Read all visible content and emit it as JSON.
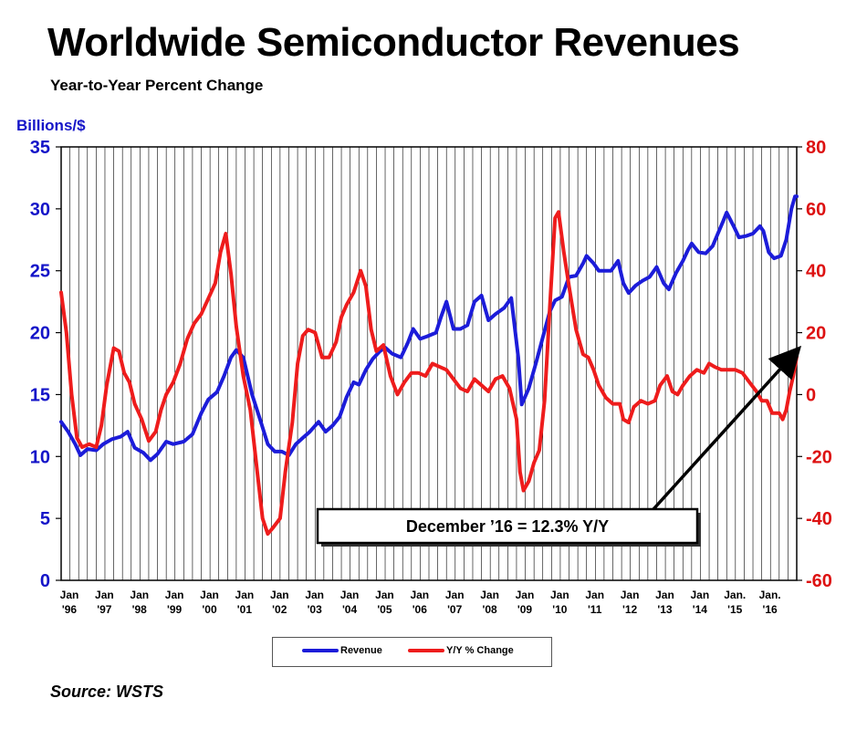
{
  "title": "Worldwide Semiconductor Revenues",
  "subtitle": "Year-to-Year Percent Change",
  "source": "Source: WSTS",
  "colors": {
    "revenue": "#1c1cd9",
    "yoy": "#ee1c1c",
    "left_axis": "#1414c8",
    "right_axis": "#dd1111"
  },
  "chart_data": {
    "type": "line",
    "ylabel_left": "Billions/$",
    "ylim_left": [
      0,
      35
    ],
    "yticks_left": [
      "0",
      "5",
      "10",
      "15",
      "20",
      "25",
      "30",
      "35"
    ],
    "ylim_right": [
      -60,
      80
    ],
    "yticks_right": [
      "-60",
      "-40",
      "-20",
      "0",
      "20",
      "40",
      "60",
      "80"
    ],
    "xlim": [
      1996.0,
      2017.0
    ],
    "x_tick_labels": [
      {
        "x": 1996,
        "line1": "Jan",
        "line2": "'96"
      },
      {
        "x": 1997,
        "line1": "Jan",
        "line2": "'97"
      },
      {
        "x": 1998,
        "line1": "Jan",
        "line2": "'98"
      },
      {
        "x": 1999,
        "line1": "Jan",
        "line2": "'99"
      },
      {
        "x": 2000,
        "line1": "Jan",
        "line2": "'00"
      },
      {
        "x": 2001,
        "line1": "Jan",
        "line2": "'01"
      },
      {
        "x": 2002,
        "line1": "Jan",
        "line2": "'02"
      },
      {
        "x": 2003,
        "line1": "Jan",
        "line2": "'03"
      },
      {
        "x": 2004,
        "line1": "Jan",
        "line2": "'04"
      },
      {
        "x": 2005,
        "line1": "Jan",
        "line2": "'05"
      },
      {
        "x": 2006,
        "line1": "Jan",
        "line2": "'06"
      },
      {
        "x": 2007,
        "line1": "Jan",
        "line2": "'07"
      },
      {
        "x": 2008,
        "line1": "Jan",
        "line2": "'08"
      },
      {
        "x": 2009,
        "line1": "Jan",
        "line2": "'09"
      },
      {
        "x": 2010,
        "line1": "Jan",
        "line2": "'10"
      },
      {
        "x": 2011,
        "line1": "Jan",
        "line2": "'11"
      },
      {
        "x": 2012,
        "line1": "Jan",
        "line2": "'12"
      },
      {
        "x": 2013,
        "line1": "Jan",
        "line2": "'13"
      },
      {
        "x": 2014,
        "line1": "Jan",
        "line2": "'14"
      },
      {
        "x": 2015,
        "line1": "Jan.",
        "line2": "'15"
      },
      {
        "x": 2016,
        "line1": "Jan.",
        "line2": "'16"
      }
    ],
    "grid": "vertical",
    "series": [
      {
        "name": "Revenue",
        "axis": "left",
        "points": [
          [
            1996.0,
            12.8
          ],
          [
            1996.2,
            12.0
          ],
          [
            1996.4,
            11.0
          ],
          [
            1996.55,
            10.1
          ],
          [
            1996.75,
            10.6
          ],
          [
            1997.0,
            10.5
          ],
          [
            1997.2,
            11.0
          ],
          [
            1997.45,
            11.4
          ],
          [
            1997.7,
            11.6
          ],
          [
            1997.9,
            12.0
          ],
          [
            1998.1,
            10.7
          ],
          [
            1998.35,
            10.3
          ],
          [
            1998.55,
            9.7
          ],
          [
            1998.75,
            10.2
          ],
          [
            1999.0,
            11.2
          ],
          [
            1999.2,
            11.0
          ],
          [
            1999.5,
            11.2
          ],
          [
            1999.75,
            11.8
          ],
          [
            2000.0,
            13.5
          ],
          [
            2000.2,
            14.6
          ],
          [
            2000.45,
            15.2
          ],
          [
            2000.65,
            16.5
          ],
          [
            2000.85,
            18.0
          ],
          [
            2001.0,
            18.6
          ],
          [
            2001.2,
            18.0
          ],
          [
            2001.45,
            15.0
          ],
          [
            2001.7,
            12.8
          ],
          [
            2001.9,
            11.0
          ],
          [
            2002.1,
            10.4
          ],
          [
            2002.3,
            10.4
          ],
          [
            2002.5,
            10.1
          ],
          [
            2002.7,
            11.0
          ],
          [
            2002.9,
            11.5
          ],
          [
            2003.1,
            12.0
          ],
          [
            2003.35,
            12.8
          ],
          [
            2003.55,
            12.0
          ],
          [
            2003.75,
            12.5
          ],
          [
            2003.95,
            13.2
          ],
          [
            2004.15,
            14.8
          ],
          [
            2004.35,
            16.0
          ],
          [
            2004.5,
            15.8
          ],
          [
            2004.7,
            17.0
          ],
          [
            2004.9,
            17.9
          ],
          [
            2005.1,
            18.5
          ],
          [
            2005.25,
            18.8
          ],
          [
            2005.45,
            18.3
          ],
          [
            2005.7,
            18.0
          ],
          [
            2005.9,
            19.2
          ],
          [
            2006.05,
            20.3
          ],
          [
            2006.25,
            19.5
          ],
          [
            2006.45,
            19.7
          ],
          [
            2006.7,
            20.0
          ],
          [
            2006.85,
            21.3
          ],
          [
            2007.0,
            22.5
          ],
          [
            2007.2,
            20.3
          ],
          [
            2007.4,
            20.3
          ],
          [
            2007.6,
            20.6
          ],
          [
            2007.8,
            22.5
          ],
          [
            2008.0,
            23.0
          ],
          [
            2008.2,
            21.0
          ],
          [
            2008.4,
            21.5
          ],
          [
            2008.65,
            22.0
          ],
          [
            2008.85,
            22.8
          ],
          [
            2009.05,
            18.0
          ],
          [
            2009.15,
            14.2
          ],
          [
            2009.35,
            15.5
          ],
          [
            2009.55,
            17.5
          ],
          [
            2009.75,
            19.6
          ],
          [
            2009.95,
            21.7
          ],
          [
            2010.1,
            22.6
          ],
          [
            2010.3,
            22.9
          ],
          [
            2010.5,
            24.5
          ],
          [
            2010.7,
            24.6
          ],
          [
            2010.9,
            25.6
          ],
          [
            2011.0,
            26.2
          ],
          [
            2011.2,
            25.6
          ],
          [
            2011.35,
            25.0
          ],
          [
            2011.55,
            25.0
          ],
          [
            2011.7,
            25.0
          ],
          [
            2011.9,
            25.8
          ],
          [
            2012.05,
            24.0
          ],
          [
            2012.2,
            23.2
          ],
          [
            2012.4,
            23.8
          ],
          [
            2012.6,
            24.2
          ],
          [
            2012.8,
            24.5
          ],
          [
            2013.0,
            25.3
          ],
          [
            2013.2,
            24.0
          ],
          [
            2013.35,
            23.5
          ],
          [
            2013.55,
            24.8
          ],
          [
            2013.75,
            25.8
          ],
          [
            2013.9,
            26.7
          ],
          [
            2014.0,
            27.2
          ],
          [
            2014.2,
            26.5
          ],
          [
            2014.4,
            26.4
          ],
          [
            2014.6,
            27.0
          ],
          [
            2014.75,
            28.0
          ],
          [
            2014.9,
            29.0
          ],
          [
            2015.0,
            29.7
          ],
          [
            2015.2,
            28.6
          ],
          [
            2015.35,
            27.7
          ],
          [
            2015.55,
            27.8
          ],
          [
            2015.75,
            28.0
          ],
          [
            2015.95,
            28.6
          ],
          [
            2016.05,
            28.2
          ],
          [
            2016.2,
            26.5
          ],
          [
            2016.35,
            26.0
          ],
          [
            2016.55,
            26.2
          ],
          [
            2016.7,
            27.5
          ],
          [
            2016.85,
            30.0
          ],
          [
            2016.95,
            31.0
          ],
          [
            2017.0,
            31.0
          ]
        ]
      },
      {
        "name": "Y/Y % Change",
        "axis": "right",
        "points": [
          [
            1996.0,
            33
          ],
          [
            1996.15,
            20
          ],
          [
            1996.3,
            0
          ],
          [
            1996.45,
            -14
          ],
          [
            1996.6,
            -17
          ],
          [
            1996.8,
            -16
          ],
          [
            1997.0,
            -17
          ],
          [
            1997.15,
            -10
          ],
          [
            1997.3,
            3
          ],
          [
            1997.5,
            15
          ],
          [
            1997.65,
            14
          ],
          [
            1997.8,
            7
          ],
          [
            1997.95,
            4
          ],
          [
            1998.1,
            -3
          ],
          [
            1998.3,
            -8
          ],
          [
            1998.5,
            -15
          ],
          [
            1998.7,
            -12
          ],
          [
            1998.85,
            -5
          ],
          [
            1999.0,
            0
          ],
          [
            1999.2,
            4
          ],
          [
            1999.4,
            10
          ],
          [
            1999.6,
            18
          ],
          [
            1999.8,
            23
          ],
          [
            2000.0,
            26
          ],
          [
            2000.2,
            31
          ],
          [
            2000.4,
            36
          ],
          [
            2000.55,
            46
          ],
          [
            2000.7,
            52
          ],
          [
            2000.85,
            39
          ],
          [
            2001.0,
            22
          ],
          [
            2001.2,
            6
          ],
          [
            2001.4,
            -5
          ],
          [
            2001.6,
            -25
          ],
          [
            2001.75,
            -40
          ],
          [
            2001.9,
            -45
          ],
          [
            2002.05,
            -43
          ],
          [
            2002.25,
            -40
          ],
          [
            2002.4,
            -25
          ],
          [
            2002.6,
            -9
          ],
          [
            2002.75,
            10
          ],
          [
            2002.9,
            19
          ],
          [
            2003.05,
            21
          ],
          [
            2003.25,
            20
          ],
          [
            2003.45,
            12
          ],
          [
            2003.65,
            12
          ],
          [
            2003.85,
            17
          ],
          [
            2004.0,
            25
          ],
          [
            2004.15,
            29
          ],
          [
            2004.35,
            33
          ],
          [
            2004.55,
            40
          ],
          [
            2004.7,
            35
          ],
          [
            2004.85,
            21
          ],
          [
            2005.0,
            14
          ],
          [
            2005.2,
            16
          ],
          [
            2005.4,
            6
          ],
          [
            2005.6,
            0
          ],
          [
            2005.8,
            4
          ],
          [
            2006.0,
            7
          ],
          [
            2006.2,
            7
          ],
          [
            2006.4,
            6
          ],
          [
            2006.6,
            10
          ],
          [
            2006.8,
            9
          ],
          [
            2007.0,
            8
          ],
          [
            2007.2,
            5
          ],
          [
            2007.4,
            2
          ],
          [
            2007.6,
            1
          ],
          [
            2007.8,
            5
          ],
          [
            2008.0,
            3
          ],
          [
            2008.2,
            1
          ],
          [
            2008.4,
            5
          ],
          [
            2008.6,
            6
          ],
          [
            2008.8,
            2
          ],
          [
            2009.0,
            -8
          ],
          [
            2009.1,
            -25
          ],
          [
            2009.2,
            -31
          ],
          [
            2009.35,
            -28
          ],
          [
            2009.5,
            -22
          ],
          [
            2009.65,
            -18
          ],
          [
            2009.8,
            -2
          ],
          [
            2009.95,
            28
          ],
          [
            2010.1,
            57
          ],
          [
            2010.2,
            59
          ],
          [
            2010.35,
            46
          ],
          [
            2010.5,
            35
          ],
          [
            2010.7,
            21
          ],
          [
            2010.9,
            13
          ],
          [
            2011.05,
            12
          ],
          [
            2011.2,
            8
          ],
          [
            2011.35,
            3
          ],
          [
            2011.55,
            -1
          ],
          [
            2011.75,
            -3
          ],
          [
            2011.95,
            -3
          ],
          [
            2012.05,
            -8
          ],
          [
            2012.2,
            -9
          ],
          [
            2012.35,
            -4
          ],
          [
            2012.55,
            -2
          ],
          [
            2012.75,
            -3
          ],
          [
            2012.95,
            -2
          ],
          [
            2013.1,
            3
          ],
          [
            2013.3,
            6
          ],
          [
            2013.45,
            1
          ],
          [
            2013.6,
            0
          ],
          [
            2013.75,
            3
          ],
          [
            2013.95,
            6
          ],
          [
            2014.15,
            8
          ],
          [
            2014.35,
            7
          ],
          [
            2014.5,
            10
          ],
          [
            2014.65,
            9
          ],
          [
            2014.85,
            8
          ],
          [
            2015.05,
            8
          ],
          [
            2015.25,
            8
          ],
          [
            2015.45,
            7
          ],
          [
            2015.65,
            4
          ],
          [
            2015.85,
            1
          ],
          [
            2016.0,
            -2
          ],
          [
            2016.15,
            -2
          ],
          [
            2016.3,
            -6
          ],
          [
            2016.5,
            -6
          ],
          [
            2016.6,
            -8
          ],
          [
            2016.7,
            -5
          ],
          [
            2016.8,
            1
          ],
          [
            2016.9,
            6
          ],
          [
            2017.0,
            12.3
          ]
        ]
      }
    ],
    "annotation": {
      "text": "December ’16 = 12.3% Y/Y",
      "target_x": 2017.0,
      "target_y_right": 12.3
    },
    "legend": {
      "placement": "bottom-center",
      "items": [
        "Revenue",
        "Y/Y % Change"
      ]
    }
  }
}
